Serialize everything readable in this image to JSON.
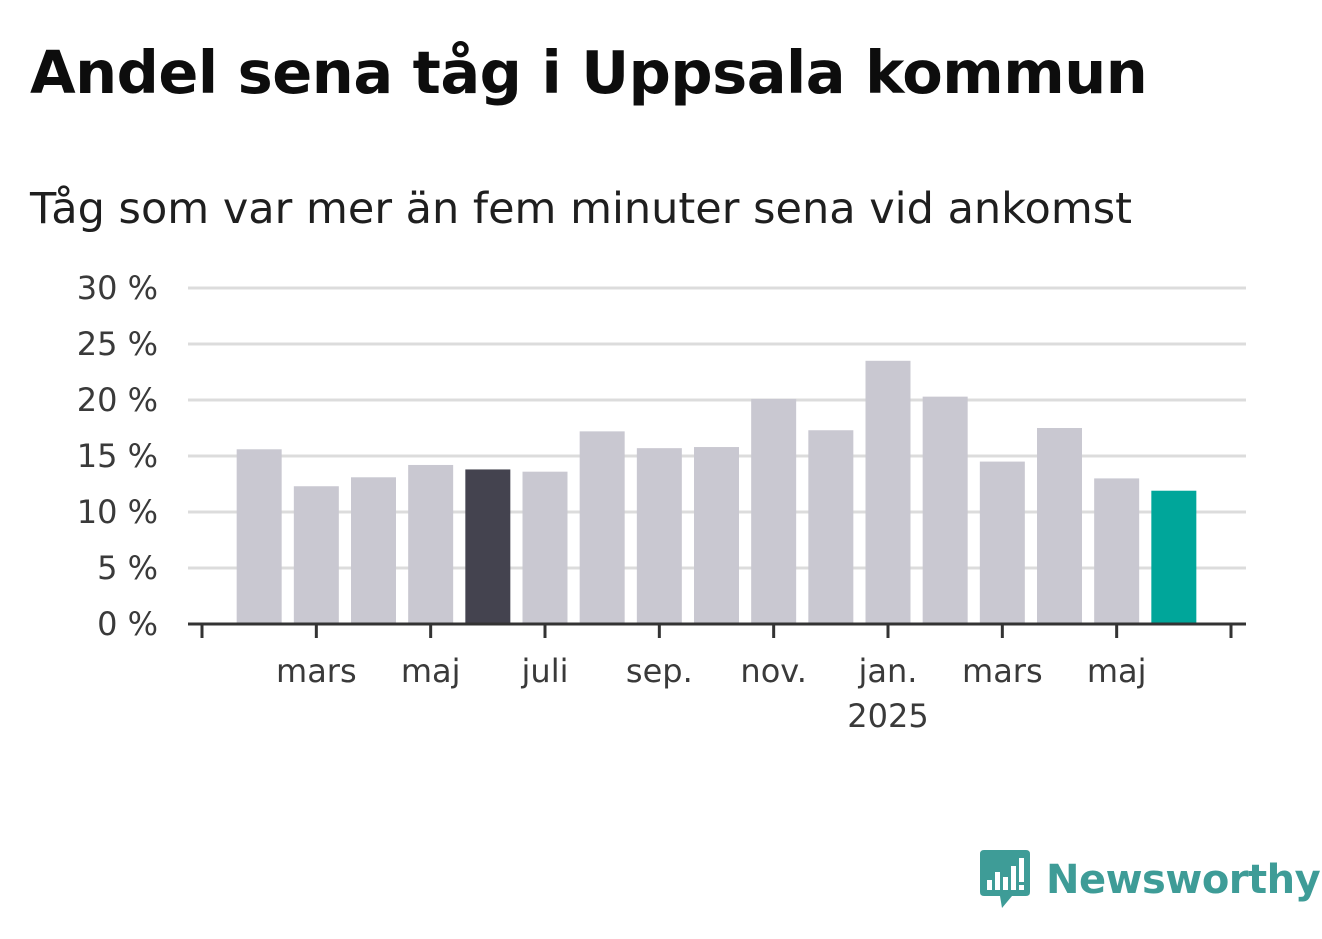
{
  "title": "Andel sena tåg i Uppsala kommun",
  "subtitle": "Tåg som var mer än fem minuter sena vid ankomst",
  "brand": "Newsworthy",
  "colors": {
    "bar_default": "#c9c8d1",
    "bar_highlight": "#44434f",
    "bar_latest": "#00a69a",
    "grid": "#dcdcdc",
    "axis": "#333333",
    "brand": "#3e9c97"
  },
  "chart_data": {
    "type": "bar",
    "ylabel": "",
    "xlabel": "",
    "ylim": [
      0,
      30
    ],
    "yticks": [
      "0 %",
      "5 %",
      "10 %",
      "15 %",
      "20 %",
      "25 %",
      "30 %"
    ],
    "ytick_values": [
      0,
      5,
      10,
      15,
      20,
      25,
      30
    ],
    "x_labels": [
      {
        "label": "mars",
        "index": 1
      },
      {
        "label": "maj",
        "index": 3
      },
      {
        "label": "juli",
        "index": 5
      },
      {
        "label": "sep.",
        "index": 7
      },
      {
        "label": "nov.",
        "index": 9
      },
      {
        "label": "jan.",
        "index": 11,
        "sublabel": "2025"
      },
      {
        "label": "mars",
        "index": 13
      },
      {
        "label": "maj",
        "index": 15
      }
    ],
    "values": [
      15.6,
      12.3,
      13.1,
      14.2,
      13.8,
      13.6,
      17.2,
      15.7,
      15.8,
      20.1,
      17.3,
      23.5,
      20.3,
      14.5,
      17.5,
      13.0,
      11.9
    ],
    "highlight_index": 4,
    "latest_index": 16,
    "grid": true
  }
}
